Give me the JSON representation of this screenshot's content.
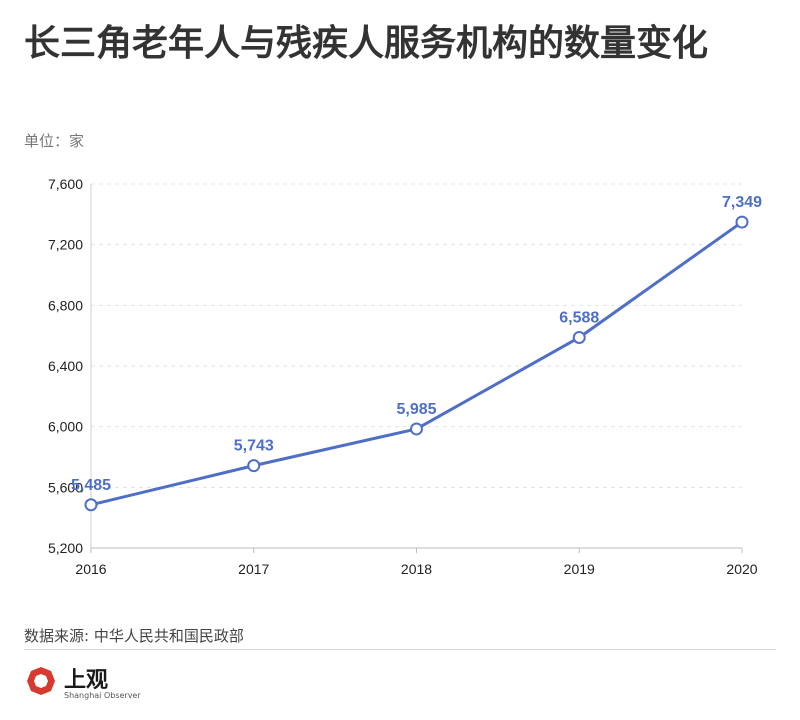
{
  "header": {
    "title": "长三角老年人与残疾人服务机构的数量变化",
    "unit": "单位：家"
  },
  "footer": {
    "source": "数据来源: 中华人民共和国民政部",
    "logo_text": "上观",
    "logo_sub": "Shanghai Observer"
  },
  "colors": {
    "line": "#4f6fc6",
    "label": "#4e6fc4",
    "logo": "#d63a2f"
  },
  "chart_data": {
    "type": "line",
    "title": "长三角老年人与残疾人服务机构的数量变化",
    "ylabel": "单位：家",
    "x": [
      "2016",
      "2017",
      "2018",
      "2019",
      "2020"
    ],
    "series": [
      {
        "values": [
          5485,
          5743,
          5985,
          6588,
          7349
        ],
        "labels": [
          "5,485",
          "5,743",
          "5,985",
          "6,588",
          "7,349"
        ]
      }
    ],
    "ylim": [
      5200,
      7600
    ],
    "yticks": [
      5200,
      5600,
      6000,
      6400,
      6800,
      7200,
      7600
    ],
    "ytick_labels": [
      "5,200",
      "5,600",
      "6,000",
      "6,400",
      "6,800",
      "7,200",
      "7,600"
    ],
    "grid": true,
    "legend": "none"
  }
}
